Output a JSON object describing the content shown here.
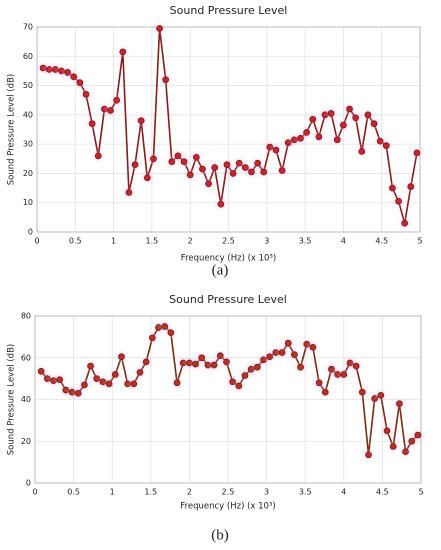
{
  "chart_data": [
    {
      "type": "line",
      "title": "Sound Pressure Level",
      "xlabel": "Frequency (Hz) (x 10³)",
      "ylabel": "Sound Pressure Level (dB)",
      "caption": "(a)",
      "x": [
        0.08,
        0.16,
        0.24,
        0.32,
        0.4,
        0.48,
        0.56,
        0.64,
        0.72,
        0.8,
        0.88,
        0.96,
        1.04,
        1.12,
        1.2,
        1.28,
        1.36,
        1.44,
        1.52,
        1.6,
        1.68,
        1.76,
        1.84,
        1.92,
        2,
        2.08,
        2.16,
        2.24,
        2.32,
        2.4,
        2.48,
        2.56,
        2.64,
        2.72,
        2.8,
        2.88,
        2.96,
        3.04,
        3.12,
        3.2,
        3.28,
        3.36,
        3.44,
        3.52,
        3.6,
        3.68,
        3.76,
        3.84,
        3.92,
        4,
        4.08,
        4.16,
        4.24,
        4.32,
        4.4,
        4.48,
        4.56,
        4.64,
        4.72,
        4.8,
        4.88,
        4.96
      ],
      "series": [
        {
          "color": "#8b1a1a",
          "marker_color": "#c8252b",
          "values": [
            56,
            55.5,
            55.5,
            55,
            54.5,
            53,
            51,
            47,
            37,
            26,
            42,
            41.5,
            45,
            61.5,
            13.5,
            23,
            38,
            18.5,
            25,
            69.5,
            52,
            24,
            26,
            24,
            19.5,
            25.5,
            21.5,
            16.5,
            22,
            9.5,
            23,
            20,
            23.5,
            22,
            20.5,
            23.5,
            20.5,
            29,
            28,
            21,
            30.5,
            31.5,
            32,
            34,
            38.5,
            32.5,
            40,
            40.5,
            31.5,
            36.5,
            42,
            39,
            27.5,
            40,
            37,
            31,
            29.5,
            15,
            10.5,
            3,
            15.5,
            27
          ]
        }
      ],
      "xlim": [
        0,
        5
      ],
      "xticks": [
        0,
        0.5,
        1,
        1.5,
        2,
        2.5,
        3,
        3.5,
        4,
        4.5,
        5
      ],
      "ylim": [
        0,
        70
      ],
      "yticks": [
        0,
        10,
        20,
        30,
        40,
        50,
        60,
        70
      ],
      "grid": true
    },
    {
      "type": "line",
      "title": "Sound Pressure Level",
      "xlabel": "Frequency (Hz) (x 10³)",
      "ylabel": "Sound Pressure Level (dB)",
      "caption": "(b)",
      "x": [
        0.08,
        0.16,
        0.24,
        0.32,
        0.4,
        0.48,
        0.56,
        0.64,
        0.72,
        0.8,
        0.88,
        0.96,
        1.04,
        1.12,
        1.2,
        1.28,
        1.36,
        1.44,
        1.52,
        1.6,
        1.68,
        1.76,
        1.84,
        1.92,
        2,
        2.08,
        2.16,
        2.24,
        2.32,
        2.4,
        2.48,
        2.56,
        2.64,
        2.72,
        2.8,
        2.88,
        2.96,
        3.04,
        3.12,
        3.2,
        3.28,
        3.36,
        3.44,
        3.52,
        3.6,
        3.68,
        3.76,
        3.84,
        3.92,
        4,
        4.08,
        4.16,
        4.24,
        4.32,
        4.4,
        4.48,
        4.56,
        4.64,
        4.72,
        4.8,
        4.88,
        4.96
      ],
      "series": [
        {
          "color": "#7a2a10",
          "marker_color": "#b8321f",
          "values": [
            53.5,
            50,
            49,
            49.5,
            44.5,
            43.5,
            43,
            47,
            56,
            50,
            48.5,
            47.5,
            52,
            60.5,
            47.5,
            47.5,
            53,
            58,
            69.5,
            74.5,
            75,
            72,
            48,
            57.5,
            57.5,
            57,
            60,
            56.5,
            56.5,
            61,
            58,
            48.5,
            46.5,
            51.5,
            54.5,
            55.5,
            59,
            60.5,
            62.5,
            62.5,
            67,
            61.5,
            55.5,
            66.5,
            65,
            48,
            43.5,
            54.5,
            52,
            52,
            57.5,
            56,
            43.5,
            13.5,
            40.5,
            42,
            25,
            17.5,
            38,
            15,
            20,
            23
          ]
        }
      ],
      "xlim": [
        0,
        5
      ],
      "xticks": [
        0,
        0.5,
        1,
        1.5,
        2,
        2.5,
        3,
        3.5,
        4,
        4.5,
        5
      ],
      "ylim": [
        0,
        80
      ],
      "yticks": [
        0,
        20,
        40,
        60,
        80
      ],
      "grid": true
    }
  ]
}
